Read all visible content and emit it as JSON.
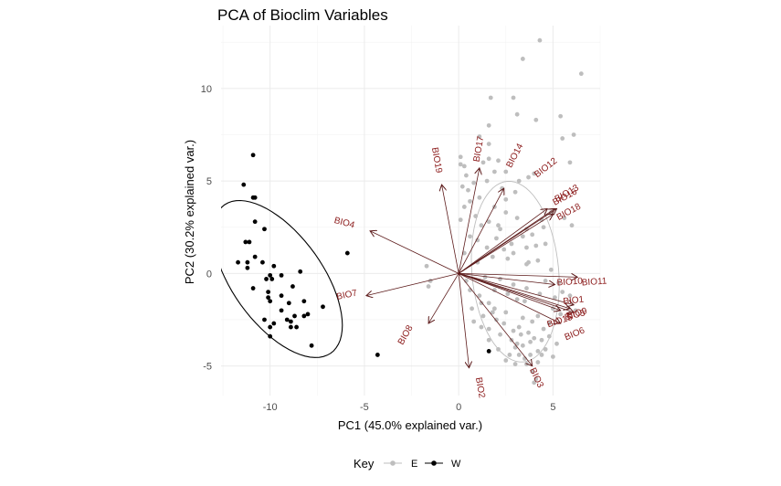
{
  "chart_data": {
    "type": "scatter",
    "title": "PCA of Bioclim Variables",
    "xlabel": "PC1 (45.0% explained var.)",
    "ylabel": "PC2 (30.2% explained var.)",
    "xlim": [
      -12.6,
      7.5
    ],
    "ylim": [
      -6.6,
      13.4
    ],
    "x_ticks": [
      -10,
      -5,
      0,
      5
    ],
    "y_ticks": [
      -5,
      0,
      5,
      10
    ],
    "grid": true,
    "legend": {
      "title": "Key",
      "position": "bottom",
      "entries": [
        "E",
        "W"
      ]
    },
    "series": [
      {
        "name": "E",
        "color": "#bebebe",
        "ellipse": {
          "cx": 3.0,
          "cy": 0.1,
          "rx": 4.9,
          "ry": 2.3,
          "angle_deg": 95
        },
        "points": [
          [
            4.3,
            12.6
          ],
          [
            6.5,
            10.8
          ],
          [
            3.4,
            11.6
          ],
          [
            2.9,
            9.5
          ],
          [
            3.1,
            8.6
          ],
          [
            4.1,
            8.3
          ],
          [
            5.4,
            8.5
          ],
          [
            5.5,
            7.3
          ],
          [
            6.1,
            7.5
          ],
          [
            5.9,
            6.0
          ],
          [
            1.7,
            9.5
          ],
          [
            1.6,
            8.0
          ],
          [
            1.6,
            7.0
          ],
          [
            1.1,
            7.4
          ],
          [
            1.6,
            6.2
          ],
          [
            1.3,
            6.0
          ],
          [
            0.1,
            6.3
          ],
          [
            0.3,
            5.8
          ],
          [
            2.1,
            6.1
          ],
          [
            2.5,
            5.5
          ],
          [
            3.7,
            5.2
          ],
          [
            4.0,
            5.4
          ],
          [
            0.1,
            5.9
          ],
          [
            1.9,
            5.5
          ],
          [
            1.5,
            5.0
          ],
          [
            0.5,
            4.5
          ],
          [
            0.6,
            3.9
          ],
          [
            0.9,
            3.1
          ],
          [
            1.2,
            2.6
          ],
          [
            2.2,
            2.4
          ],
          [
            2.5,
            3.3
          ],
          [
            3.1,
            3.0
          ],
          [
            3.6,
            2.4
          ],
          [
            4.5,
            2.5
          ],
          [
            4.1,
            1.5
          ],
          [
            3.6,
            1.4
          ],
          [
            2.8,
            1.6
          ],
          [
            2.6,
            0.8
          ],
          [
            0.1,
            2.9
          ],
          [
            0.6,
            2.0
          ],
          [
            0.3,
            1.1
          ],
          [
            1.0,
            1.8
          ],
          [
            1.8,
            0.9
          ],
          [
            2.1,
            2.6
          ],
          [
            3.4,
            2.0
          ],
          [
            3.6,
            0.5
          ],
          [
            4.2,
            0.7
          ],
          [
            3.9,
            2.1
          ],
          [
            -1.7,
            0.4
          ],
          [
            -1.5,
            -0.4
          ],
          [
            -1.6,
            -0.7
          ],
          [
            0.4,
            -0.4
          ],
          [
            0.6,
            -0.9
          ],
          [
            1.1,
            -1.2
          ],
          [
            1.6,
            -1.6
          ],
          [
            1.8,
            -2.1
          ],
          [
            2.5,
            -2.1
          ],
          [
            3.1,
            -1.4
          ],
          [
            3.5,
            -1.5
          ],
          [
            3.4,
            -2.4
          ],
          [
            2.9,
            -3.1
          ],
          [
            2.4,
            -2.7
          ],
          [
            2.2,
            -3.3
          ],
          [
            2.8,
            -3.6
          ],
          [
            3.1,
            -3.8
          ],
          [
            3.4,
            -3.9
          ],
          [
            3.8,
            -3.7
          ],
          [
            4.0,
            -3.5
          ],
          [
            4.4,
            -3.6
          ],
          [
            4.5,
            -3.0
          ],
          [
            2.7,
            -4.4
          ],
          [
            3.2,
            -4.4
          ],
          [
            3.5,
            -4.6
          ],
          [
            3.8,
            -4.4
          ],
          [
            4.2,
            -4.8
          ],
          [
            4.4,
            -4.4
          ],
          [
            3.9,
            -5.3
          ],
          [
            4.1,
            -5.7
          ],
          [
            4.0,
            -5.9
          ],
          [
            2.5,
            -4.7
          ],
          [
            3.0,
            -4.9
          ],
          [
            3.6,
            -4.9
          ],
          [
            1.2,
            -2.9
          ],
          [
            1.6,
            -3.0
          ],
          [
            0.7,
            -1.9
          ],
          [
            1.3,
            -2.3
          ],
          [
            2.0,
            -2.5
          ],
          [
            5.1,
            -1.3
          ],
          [
            5.0,
            -1.9
          ],
          [
            4.8,
            -2.7
          ],
          [
            5.3,
            -0.5
          ],
          [
            4.6,
            -0.4
          ],
          [
            5.5,
            -1.0
          ],
          [
            5.9,
            -1.2
          ],
          [
            4.9,
            0.2
          ],
          [
            5.4,
            -2.2
          ],
          [
            6.2,
            -2.0
          ],
          [
            4.6,
            -4.1
          ],
          [
            3.9,
            -2.6
          ],
          [
            3.3,
            -3.3
          ],
          [
            2.6,
            -1.1
          ],
          [
            1.9,
            -0.9
          ],
          [
            1.4,
            -0.2
          ],
          [
            2.9,
            1.1
          ],
          [
            3.7,
            0.6
          ],
          [
            4.6,
            1.6
          ],
          [
            4.4,
            2.9
          ],
          [
            3.0,
            4.4
          ],
          [
            2.5,
            4.0
          ],
          [
            1.9,
            3.6
          ],
          [
            1.1,
            4.1
          ],
          [
            0.3,
            3.6
          ],
          [
            1.5,
            1.4
          ],
          [
            2.0,
            1.9
          ],
          [
            2.4,
            1.3
          ],
          [
            4.9,
            3.3
          ],
          [
            5.6,
            3.0
          ],
          [
            6.0,
            2.6
          ],
          [
            1.2,
            -1.6
          ],
          [
            0.8,
            -2.6
          ],
          [
            1.9,
            -1.9
          ],
          [
            3.2,
            -2.9
          ],
          [
            3.7,
            -3.2
          ],
          [
            4.2,
            -2.3
          ],
          [
            4.8,
            -3.4
          ],
          [
            4.2,
            -4.2
          ],
          [
            3.0,
            -4.0
          ],
          [
            2.1,
            -4.1
          ],
          [
            1.6,
            -3.6
          ],
          [
            5.2,
            -3.8
          ],
          [
            5.0,
            -4.5
          ],
          [
            2.2,
            -0.3
          ],
          [
            2.9,
            -0.6
          ],
          [
            3.6,
            -0.8
          ],
          [
            4.3,
            -1.1
          ],
          [
            1.0,
            0.6
          ],
          [
            1.6,
            2.8
          ],
          [
            0.8,
            4.9
          ],
          [
            0.2,
            4.7
          ],
          [
            0.4,
            5.3
          ],
          [
            2.3,
            4.6
          ],
          [
            3.2,
            5.0
          ]
        ]
      },
      {
        "name": "W",
        "color": "#000000",
        "ellipse": {
          "cx": -9.6,
          "cy": -0.3,
          "rx": 4.9,
          "ry": 2.4,
          "angle_deg": -55
        },
        "points": [
          [
            -10.9,
            6.4
          ],
          [
            -11.4,
            4.8
          ],
          [
            -10.9,
            4.1
          ],
          [
            -10.8,
            4.1
          ],
          [
            -10.8,
            2.8
          ],
          [
            -10.3,
            2.4
          ],
          [
            -11.3,
            1.7
          ],
          [
            -11.1,
            1.7
          ],
          [
            -10.8,
            0.9
          ],
          [
            -11.7,
            0.6
          ],
          [
            -11.2,
            0.6
          ],
          [
            -10.4,
            0.6
          ],
          [
            -9.8,
            0.4
          ],
          [
            -11.2,
            0.3
          ],
          [
            -10.0,
            -0.1
          ],
          [
            -10.2,
            -0.3
          ],
          [
            -9.9,
            -0.3
          ],
          [
            -9.4,
            -0.1
          ],
          [
            -8.4,
            0.1
          ],
          [
            -8.8,
            -0.7
          ],
          [
            -10.9,
            -0.8
          ],
          [
            -10.1,
            -1.0
          ],
          [
            -9.4,
            -1.2
          ],
          [
            -10.0,
            -1.5
          ],
          [
            -9.0,
            -1.6
          ],
          [
            -8.2,
            -1.5
          ],
          [
            -8.7,
            -2.3
          ],
          [
            -9.4,
            -2.0
          ],
          [
            -10.3,
            -2.5
          ],
          [
            -10.0,
            -2.9
          ],
          [
            -9.1,
            -2.5
          ],
          [
            -8.9,
            -2.6
          ],
          [
            -8.9,
            -2.9
          ],
          [
            -8.6,
            -2.9
          ],
          [
            -8.2,
            -2.3
          ],
          [
            -8.0,
            -2.2
          ],
          [
            -10.0,
            -3.4
          ],
          [
            -9.8,
            -2.7
          ],
          [
            -7.8,
            -3.9
          ],
          [
            -7.2,
            -1.8
          ],
          [
            -5.9,
            1.1
          ],
          [
            -4.3,
            -4.4
          ],
          [
            1.6,
            -4.2
          ],
          [
            -10.1,
            -1.3
          ]
        ]
      }
    ],
    "loadings": [
      {
        "label": "BIO1",
        "x": 6.1,
        "y": -1.7
      },
      {
        "label": "BIO2",
        "x": 0.55,
        "y": -5.1
      },
      {
        "label": "BIO3",
        "x": 3.9,
        "y": -5.0
      },
      {
        "label": "BIO4",
        "x": -4.7,
        "y": 2.3
      },
      {
        "label": "BIO5",
        "x": 5.9,
        "y": -1.9
      },
      {
        "label": "BIO6",
        "x": 5.4,
        "y": -2.7
      },
      {
        "label": "BIO7",
        "x": -4.9,
        "y": -1.2
      },
      {
        "label": "BIO8",
        "x": -1.6,
        "y": -2.7
      },
      {
        "label": "BIO9",
        "x": 6.1,
        "y": -2.1
      },
      {
        "label": "BIO10",
        "x": 5.1,
        "y": -0.6
      },
      {
        "label": "BIO11",
        "x": 6.3,
        "y": -0.2
      },
      {
        "label": "BIO12",
        "x": 4.7,
        "y": 3.5
      },
      {
        "label": "BIO13",
        "x": 5.2,
        "y": 3.5
      },
      {
        "label": "BIO14",
        "x": 2.4,
        "y": 4.6
      },
      {
        "label": "BIO15",
        "x": 5.4,
        "y": -2.0
      },
      {
        "label": "BIO16",
        "x": 5.1,
        "y": 3.5
      },
      {
        "label": "BIO17",
        "x": 1.1,
        "y": 5.7
      },
      {
        "label": "BIO18",
        "x": 5.0,
        "y": 3.2
      },
      {
        "label": "BIO19",
        "x": -0.9,
        "y": 4.8
      }
    ],
    "loading_labels": [
      {
        "text": "BIO4",
        "x": -6.1,
        "y": 2.6,
        "rot": 15
      },
      {
        "text": "BIO7",
        "x": -5.9,
        "y": -1.3,
        "rot": -12
      },
      {
        "text": "BIO8",
        "x": -2.7,
        "y": -3.4,
        "rot": -60
      },
      {
        "text": "BIO19",
        "x": -1.3,
        "y": 6.1,
        "rot": 80
      },
      {
        "text": "BIO17",
        "x": 1.2,
        "y": 6.7,
        "rot": -80
      },
      {
        "text": "BIO14",
        "x": 3.1,
        "y": 6.3,
        "rot": -62
      },
      {
        "text": "BIO12",
        "x": 4.7,
        "y": 5.6,
        "rot": -38
      },
      {
        "text": "BIO16",
        "x": 5.7,
        "y": 4.0,
        "rot": -28
      },
      {
        "text": "BIO13",
        "x": 5.8,
        "y": 4.2,
        "rot": -30
      },
      {
        "text": "BIO18",
        "x": 5.9,
        "y": 3.2,
        "rot": -28
      },
      {
        "text": "BIO10",
        "x": 5.9,
        "y": -0.6,
        "rot": -4
      },
      {
        "text": "BIO11",
        "x": 7.2,
        "y": -0.6,
        "rot": -4
      },
      {
        "text": "BIO1",
        "x": 6.1,
        "y": -1.6,
        "rot": -6
      },
      {
        "text": "BIO5",
        "x": 6.2,
        "y": -2.4,
        "rot": -14
      },
      {
        "text": "BIO15",
        "x": 5.4,
        "y": -2.7,
        "rot": -18
      },
      {
        "text": "BIO6",
        "x": 6.2,
        "y": -3.4,
        "rot": -22
      },
      {
        "text": "BIO9",
        "x": 6.3,
        "y": -2.3,
        "rot": -16
      },
      {
        "text": "BIO3",
        "x": 4.0,
        "y": -5.7,
        "rot": 65
      },
      {
        "text": "BIO2",
        "x": 1.0,
        "y": -6.2,
        "rot": 80
      }
    ],
    "colors": {
      "loading_arrow": "#5c1a1a",
      "loading_label": "#8b1a1a",
      "grid": "#ebebeb"
    }
  }
}
